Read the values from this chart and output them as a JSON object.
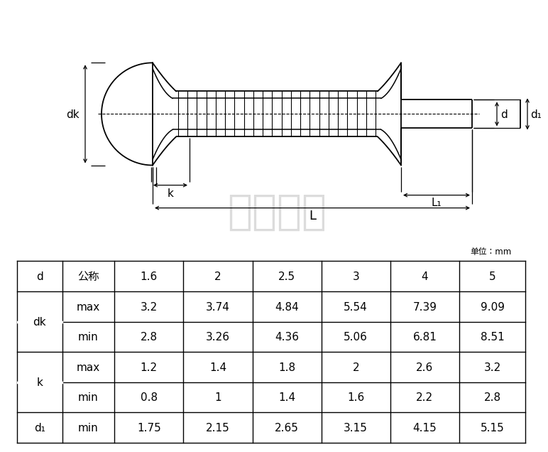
{
  "bg_color": "#ffffff",
  "line_color": "#000000",
  "watermark": "海平五金",
  "unit_label": "单位：mm",
  "table_headers": [
    "d",
    "公称",
    "1.6",
    "2",
    "2.5",
    "3",
    "4",
    "5"
  ],
  "row_dk_max": [
    "3.2",
    "3.74",
    "4.84",
    "5.54",
    "7.39",
    "9.09"
  ],
  "row_dk_min": [
    "2.8",
    "3.26",
    "4.36",
    "5.06",
    "6.81",
    "8.51"
  ],
  "row_k_max": [
    "1.2",
    "1.4",
    "1.8",
    "2",
    "2.6",
    "3.2"
  ],
  "row_k_min": [
    "0.8",
    "1",
    "1.4",
    "1.6",
    "2.2",
    "2.8"
  ],
  "row_d1_min": [
    "1.75",
    "2.15",
    "2.65",
    "3.15",
    "4.15",
    "5.15"
  ],
  "label_dk": "dk",
  "label_k": "k",
  "label_d1": "d₁",
  "label_d": "d",
  "label_L": "L",
  "label_L1": "L₁",
  "drawing_lw": 1.3,
  "dim_lw": 0.9,
  "knurl_lw": 0.8,
  "dash_lw": 0.8,
  "font_sz_dim": 11,
  "font_sz_table": 11
}
